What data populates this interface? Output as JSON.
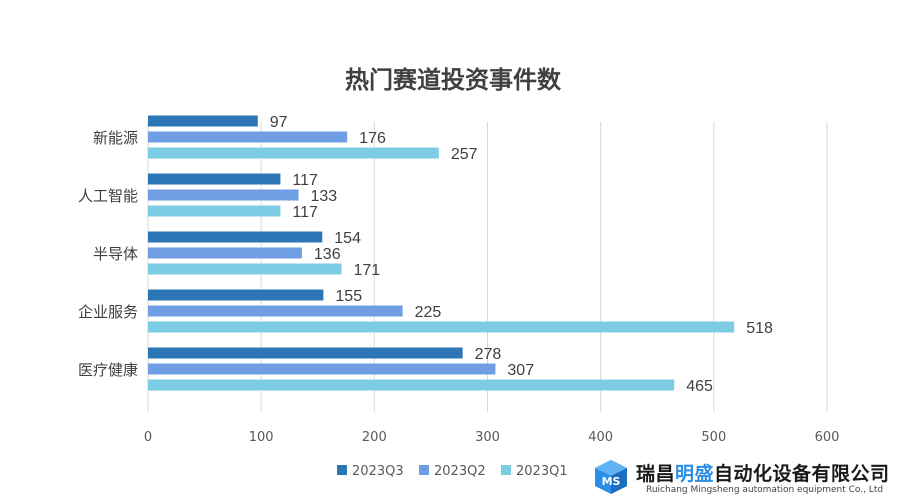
{
  "chart_data": {
    "type": "bar",
    "orientation": "horizontal",
    "title": "热门赛道投资事件数",
    "categories": [
      "新能源",
      "人工智能",
      "半导体",
      "企业服务",
      "医疗健康"
    ],
    "series": [
      {
        "name": "2023Q3",
        "values": [
          97,
          117,
          154,
          155,
          278
        ],
        "color": "#2e75b6"
      },
      {
        "name": "2023Q2",
        "values": [
          176,
          133,
          136,
          225,
          307
        ],
        "color": "#6f9fe2"
      },
      {
        "name": "2023Q1",
        "values": [
          257,
          117,
          171,
          518,
          465
        ],
        "color": "#7ecbe4"
      }
    ],
    "xlim": [
      0,
      600
    ],
    "xticks": [
      0,
      100,
      200,
      300,
      400,
      500,
      600
    ],
    "grid": true,
    "legend_position": "bottom"
  },
  "logo": {
    "name_part1": "瑞昌",
    "name_accent": "明盛",
    "name_part2": "自动化设备有限公司",
    "english": "Ruichang Mingsheng automation equipment Co., Ltd",
    "accent_color": "#2a8ee6",
    "icon": "ms-cube-logo"
  }
}
